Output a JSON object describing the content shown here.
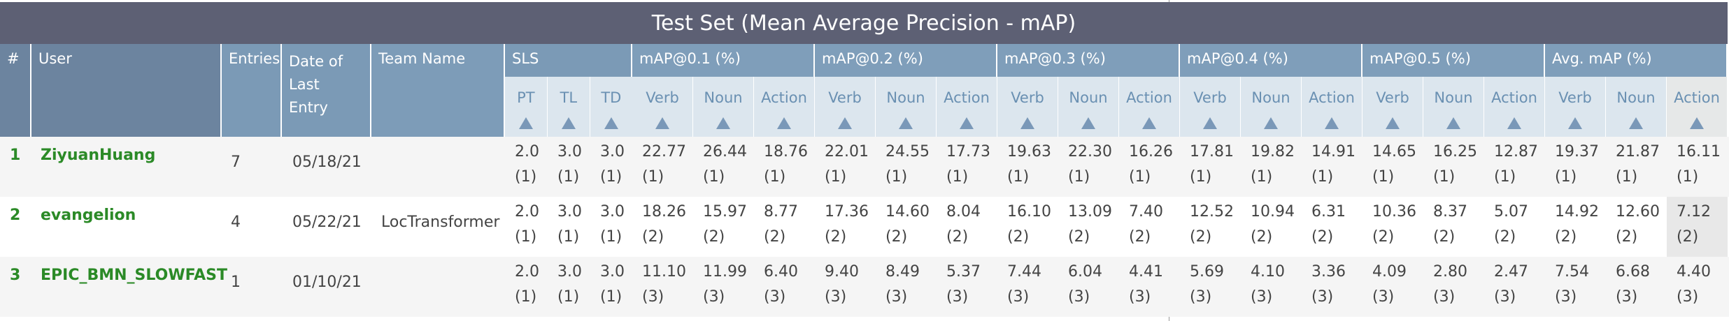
{
  "title": "Test Set (Mean Average Precision - mAP)",
  "headers": {
    "rank": "#",
    "user": "User",
    "entries": "Entries",
    "date": "Date of Last Entry",
    "team": "Team Name",
    "groups": [
      "SLS",
      "mAP@0.1 (%)",
      "mAP@0.2 (%)",
      "mAP@0.3 (%)",
      "mAP@0.4 (%)",
      "mAP@0.5 (%)",
      "Avg. mAP (%)"
    ],
    "sub": [
      "PT",
      "TL",
      "TD",
      "Verb",
      "Noun",
      "Action",
      "Verb",
      "Noun",
      "Action",
      "Verb",
      "Noun",
      "Action",
      "Verb",
      "Noun",
      "Action",
      "Verb",
      "Noun",
      "Action",
      "Verb",
      "Noun",
      "Action"
    ]
  },
  "rows": [
    {
      "rank": "1",
      "user": "ZiyuanHuang",
      "entries": "7",
      "date": "05/18/21",
      "team": "",
      "values": [
        "2.0",
        "3.0",
        "3.0",
        "22.77",
        "26.44",
        "18.76",
        "22.01",
        "24.55",
        "17.73",
        "19.63",
        "22.30",
        "16.26",
        "17.81",
        "19.82",
        "14.91",
        "14.65",
        "16.25",
        "12.87",
        "19.37",
        "21.87",
        "16.11"
      ],
      "ranks": [
        "(1)",
        "(1)",
        "(1)",
        "(1)",
        "(1)",
        "(1)",
        "(1)",
        "(1)",
        "(1)",
        "(1)",
        "(1)",
        "(1)",
        "(1)",
        "(1)",
        "(1)",
        "(1)",
        "(1)",
        "(1)",
        "(1)",
        "(1)",
        "(1)"
      ]
    },
    {
      "rank": "2",
      "user": "evangelion",
      "entries": "4",
      "date": "05/22/21",
      "team": "LocTransformer",
      "values": [
        "2.0",
        "3.0",
        "3.0",
        "18.26",
        "15.97",
        "8.77",
        "17.36",
        "14.60",
        "8.04",
        "16.10",
        "13.09",
        "7.40",
        "12.52",
        "10.94",
        "6.31",
        "10.36",
        "8.37",
        "5.07",
        "14.92",
        "12.60",
        "7.12"
      ],
      "ranks": [
        "(1)",
        "(1)",
        "(1)",
        "(2)",
        "(2)",
        "(2)",
        "(2)",
        "(2)",
        "(2)",
        "(2)",
        "(2)",
        "(2)",
        "(2)",
        "(2)",
        "(2)",
        "(2)",
        "(2)",
        "(2)",
        "(2)",
        "(2)",
        "(2)"
      ]
    },
    {
      "rank": "3",
      "user": "EPIC_BMN_SLOWFAST",
      "entries": "1",
      "date": "01/10/21",
      "team": "",
      "values": [
        "2.0",
        "3.0",
        "3.0",
        "11.10",
        "11.99",
        "6.40",
        "9.40",
        "8.49",
        "5.37",
        "7.44",
        "6.04",
        "4.41",
        "5.69",
        "4.10",
        "3.36",
        "4.09",
        "2.80",
        "2.47",
        "7.54",
        "6.68",
        "4.40"
      ],
      "ranks": [
        "(1)",
        "(1)",
        "(1)",
        "(3)",
        "(3)",
        "(3)",
        "(3)",
        "(3)",
        "(3)",
        "(3)",
        "(3)",
        "(3)",
        "(3)",
        "(3)",
        "(3)",
        "(3)",
        "(3)",
        "(3)",
        "(3)",
        "(3)",
        "(3)"
      ]
    }
  ]
}
